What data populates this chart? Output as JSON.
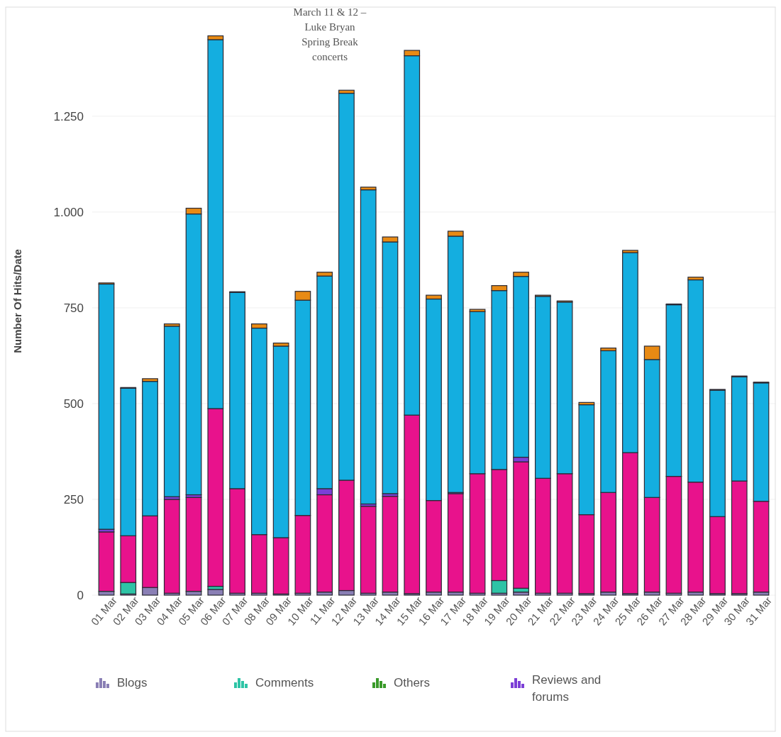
{
  "chart_data": {
    "type": "bar",
    "stacked": true,
    "ylabel": "Number Of Hits/Date",
    "annotations": [
      "March 11 & 12 –\nLuke Bryan\nSpring Break\nconcerts"
    ],
    "categories": [
      "01 Mar",
      "02 Mar",
      "03 Mar",
      "04 Mar",
      "05 Mar",
      "06 Mar",
      "07 Mar",
      "08 Mar",
      "09 Mar",
      "10 Mar",
      "11 Mar",
      "12 Mar",
      "13 Mar",
      "14 Mar",
      "15 Mar",
      "16 Mar",
      "17 Mar",
      "18 Mar",
      "19 Mar",
      "20 Mar",
      "21 Mar",
      "22 Mar",
      "23 Mar",
      "24 Mar",
      "25 Mar",
      "26 Mar",
      "27 Mar",
      "28 Mar",
      "29 Mar",
      "30 Mar",
      "31 Mar"
    ],
    "series": [
      {
        "name": "Blogs",
        "color": "#8a7fb5",
        "values": [
          10,
          3,
          20,
          5,
          10,
          15,
          5,
          5,
          3,
          5,
          8,
          12,
          5,
          8,
          4,
          8,
          8,
          5,
          5,
          8,
          5,
          5,
          4,
          8,
          4,
          8,
          5,
          8,
          4,
          4,
          8
        ]
      },
      {
        "name": "Comments",
        "color": "#2ec4a6",
        "values": [
          0,
          30,
          0,
          0,
          0,
          8,
          0,
          0,
          0,
          0,
          0,
          0,
          0,
          0,
          0,
          0,
          0,
          0,
          33,
          10,
          0,
          0,
          0,
          0,
          0,
          0,
          0,
          0,
          0,
          0,
          0
        ]
      },
      {
        "color": "#e8128c",
        "values": [
          155,
          122,
          187,
          245,
          245,
          464,
          273,
          153,
          147,
          203,
          254,
          288,
          227,
          250,
          466,
          239,
          257,
          312,
          290,
          330,
          300,
          312,
          206,
          260,
          368,
          247,
          305,
          287,
          201,
          294,
          237
        ]
      },
      {
        "name": "Others",
        "color": "#3a9a2a",
        "values": [
          0,
          0,
          0,
          0,
          0,
          0,
          0,
          0,
          0,
          0,
          0,
          0,
          0,
          0,
          0,
          0,
          0,
          0,
          0,
          0,
          0,
          0,
          0,
          0,
          0,
          0,
          0,
          0,
          0,
          0,
          0
        ]
      },
      {
        "name": "Reviews and forums",
        "color": "#7c3fd6",
        "values": [
          7,
          0,
          0,
          7,
          7,
          0,
          0,
          0,
          0,
          0,
          16,
          0,
          6,
          7,
          0,
          0,
          3,
          0,
          0,
          12,
          0,
          0,
          0,
          0,
          0,
          0,
          0,
          0,
          0,
          0,
          0
        ]
      },
      {
        "color": "#14aee0",
        "values": [
          640,
          385,
          351,
          445,
          733,
          963,
          512,
          539,
          500,
          562,
          555,
          1010,
          820,
          657,
          938,
          526,
          669,
          423,
          467,
          472,
          475,
          448,
          287,
          370,
          522,
          360,
          448,
          528,
          330,
          272,
          309
        ]
      },
      {
        "color": "#e88a14",
        "values": [
          3,
          2,
          7,
          6,
          15,
          10,
          2,
          11,
          8,
          23,
          10,
          8,
          7,
          13,
          14,
          10,
          13,
          6,
          13,
          11,
          3,
          3,
          6,
          7,
          6,
          35,
          2,
          7,
          2,
          2,
          2
        ]
      }
    ],
    "ylim": [
      0,
      1535
    ],
    "yticks": [
      0,
      250,
      500,
      750,
      {
        "value": 1000,
        "label": "1.000"
      },
      {
        "value": 1250,
        "label": "1.250"
      }
    ],
    "grid": "y",
    "legend": "bottom"
  }
}
